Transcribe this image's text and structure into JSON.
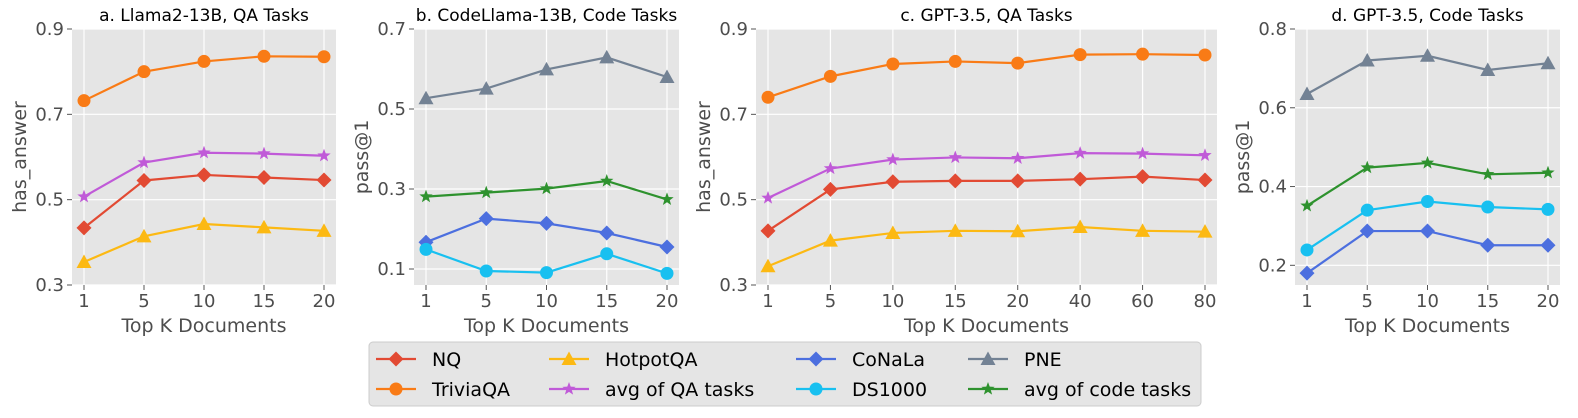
{
  "colors": {
    "NQ": "#e24a33",
    "TriviaQA": "#f97b16",
    "HotpotQA": "#fcb913",
    "avg of QA tasks": "#c05ad8",
    "CoNaLa": "#4c6fdf",
    "DS1000": "#18c0f0",
    "PNE": "#738294",
    "avg of code tasks": "#2e922e",
    "panel_bg": "#e5e5e5",
    "grid": "#ffffff"
  },
  "legend": {
    "placement": "bottom-center",
    "entries": [
      {
        "name": "NQ",
        "marker": "diamond"
      },
      {
        "name": "TriviaQA",
        "marker": "circle"
      },
      {
        "name": "HotpotQA",
        "marker": "triangle"
      },
      {
        "name": "avg of QA tasks",
        "marker": "star"
      },
      {
        "name": "CoNaLa",
        "marker": "diamond"
      },
      {
        "name": "DS1000",
        "marker": "circle"
      },
      {
        "name": "PNE",
        "marker": "triangle"
      },
      {
        "name": "avg of code tasks",
        "marker": "star"
      }
    ]
  },
  "chart_data": [
    {
      "type": "line",
      "title": "a. Llama2-13B, QA Tasks",
      "xlabel": "Top K Documents",
      "ylabel": "has_answer",
      "x": [
        1,
        5,
        10,
        15,
        20
      ],
      "x_scale": "categorical",
      "xticks": [
        "1",
        "5",
        "10",
        "15",
        "20"
      ],
      "ylim": [
        0.3,
        0.9
      ],
      "yticks": [
        "0.3",
        "0.5",
        "0.7",
        "0.9"
      ],
      "grid": true,
      "series": [
        {
          "name": "TriviaQA",
          "marker": "circle",
          "values": [
            0.732,
            0.8,
            0.824,
            0.836,
            0.835
          ]
        },
        {
          "name": "avg of QA tasks",
          "marker": "star",
          "values": [
            0.507,
            0.587,
            0.61,
            0.608,
            0.603
          ]
        },
        {
          "name": "NQ",
          "marker": "diamond",
          "values": [
            0.434,
            0.545,
            0.558,
            0.552,
            0.546
          ]
        },
        {
          "name": "HotpotQA",
          "marker": "triangle",
          "values": [
            0.354,
            0.414,
            0.443,
            0.435,
            0.427
          ]
        }
      ]
    },
    {
      "type": "line",
      "title": "b. CodeLlama-13B, Code Tasks",
      "xlabel": "Top K Documents",
      "ylabel": "pass@1",
      "x": [
        1,
        5,
        10,
        15,
        20
      ],
      "x_scale": "categorical",
      "xticks": [
        "1",
        "5",
        "10",
        "15",
        "20"
      ],
      "ylim": [
        0.06,
        0.7
      ],
      "yticks": [
        "0.1",
        "0.3",
        "0.5",
        "0.7"
      ],
      "grid": true,
      "series": [
        {
          "name": "PNE",
          "marker": "triangle",
          "values": [
            0.527,
            0.551,
            0.599,
            0.629,
            0.58
          ]
        },
        {
          "name": "avg of code tasks",
          "marker": "star",
          "values": [
            0.281,
            0.291,
            0.301,
            0.32,
            0.274
          ]
        },
        {
          "name": "CoNaLa",
          "marker": "diamond",
          "values": [
            0.167,
            0.226,
            0.214,
            0.19,
            0.155
          ]
        },
        {
          "name": "DS1000",
          "marker": "circle",
          "values": [
            0.149,
            0.095,
            0.091,
            0.138,
            0.089
          ]
        }
      ]
    },
    {
      "type": "line",
      "title": "c. GPT-3.5, QA Tasks",
      "xlabel": "Top K Documents",
      "ylabel": "has_answer",
      "x": [
        1,
        5,
        10,
        15,
        20,
        40,
        60,
        80
      ],
      "x_scale": "categorical",
      "xticks": [
        "1",
        "5",
        "10",
        "15",
        "20",
        "40",
        "60",
        "80"
      ],
      "ylim": [
        0.3,
        0.9
      ],
      "yticks": [
        "0.3",
        "0.5",
        "0.7",
        "0.9"
      ],
      "grid": true,
      "series": [
        {
          "name": "TriviaQA",
          "marker": "circle",
          "values": [
            0.74,
            0.789,
            0.818,
            0.824,
            0.82,
            0.84,
            0.841,
            0.839
          ]
        },
        {
          "name": "avg of QA tasks",
          "marker": "star",
          "values": [
            0.504,
            0.573,
            0.594,
            0.599,
            0.597,
            0.609,
            0.608,
            0.604
          ]
        },
        {
          "name": "NQ",
          "marker": "diamond",
          "values": [
            0.427,
            0.524,
            0.542,
            0.544,
            0.544,
            0.548,
            0.554,
            0.546
          ]
        },
        {
          "name": "HotpotQA",
          "marker": "triangle",
          "values": [
            0.344,
            0.404,
            0.422,
            0.427,
            0.426,
            0.436,
            0.427,
            0.425
          ]
        }
      ]
    },
    {
      "type": "line",
      "title": "d. GPT-3.5, Code Tasks",
      "xlabel": "Top K Documents",
      "ylabel": "pass@1",
      "x": [
        1,
        5,
        10,
        15,
        20
      ],
      "x_scale": "categorical",
      "xticks": [
        "1",
        "5",
        "10",
        "15",
        "20"
      ],
      "ylim": [
        0.15,
        0.8
      ],
      "yticks": [
        "0.2",
        "0.4",
        "0.6",
        "0.8"
      ],
      "grid": true,
      "series": [
        {
          "name": "PNE",
          "marker": "triangle",
          "values": [
            0.635,
            0.72,
            0.732,
            0.696,
            0.713
          ]
        },
        {
          "name": "avg of code tasks",
          "marker": "star",
          "values": [
            0.351,
            0.448,
            0.46,
            0.431,
            0.435
          ]
        },
        {
          "name": "DS1000",
          "marker": "circle",
          "values": [
            0.239,
            0.34,
            0.362,
            0.348,
            0.342
          ]
        },
        {
          "name": "CoNaLa",
          "marker": "diamond",
          "values": [
            0.18,
            0.287,
            0.287,
            0.251,
            0.251
          ]
        }
      ]
    }
  ]
}
